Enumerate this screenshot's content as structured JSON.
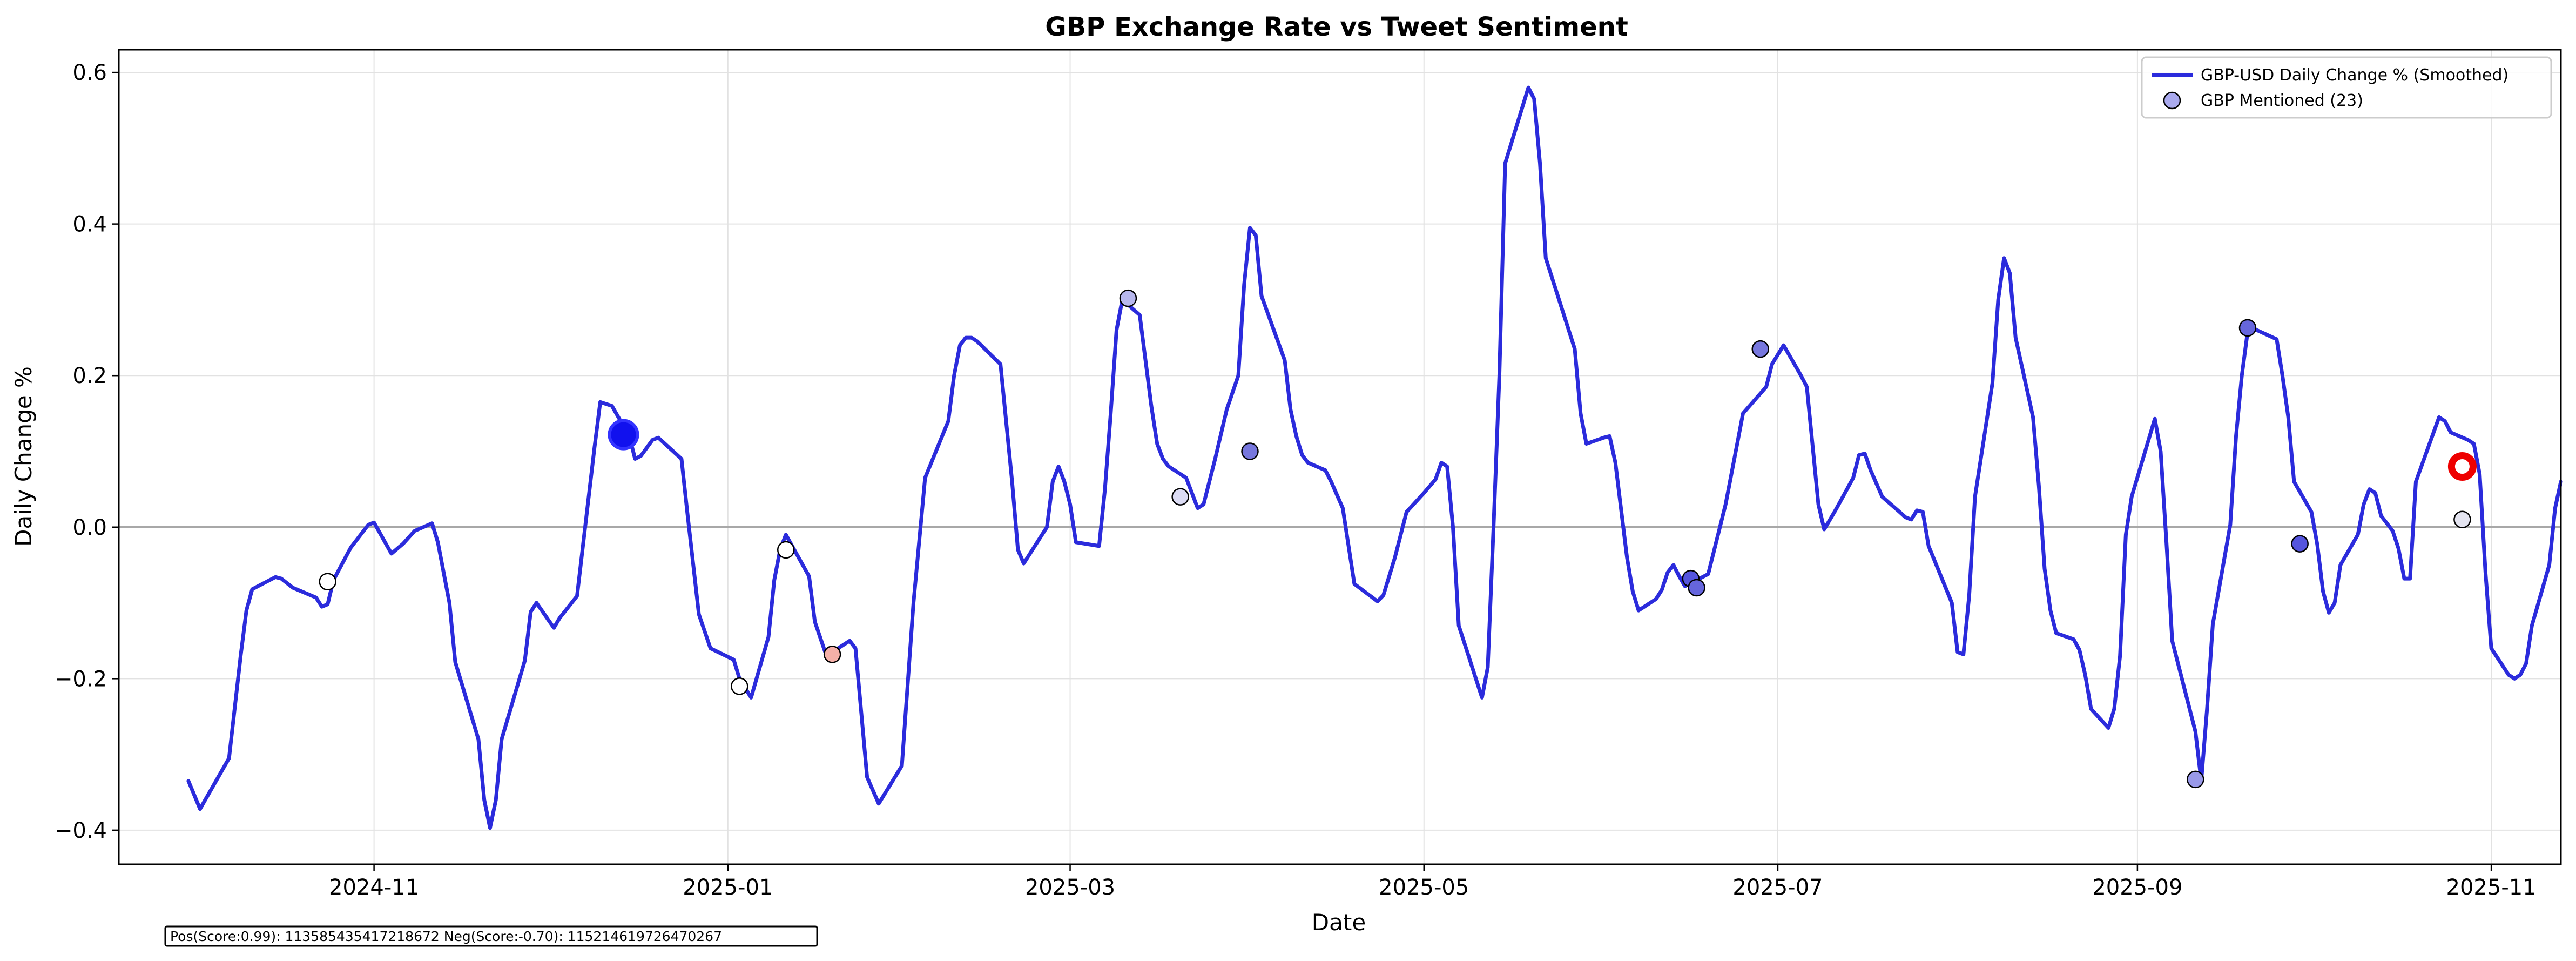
{
  "chart_data": {
    "type": "line",
    "title": "GBP Exchange Rate vs Tweet Sentiment",
    "xlabel": "Date",
    "ylabel": "Daily Change %",
    "xlim": [
      "2024-09-18",
      "2025-11-13"
    ],
    "ylim": [
      -0.445,
      0.63
    ],
    "grid": true,
    "zero_line": true,
    "legend_position": "top-right",
    "x_ticks": [
      "2024-11",
      "2025-01",
      "2025-03",
      "2025-05",
      "2025-07",
      "2025-09",
      "2025-11"
    ],
    "y_ticks": [
      -0.4,
      -0.2,
      0.0,
      0.2,
      0.4,
      0.6
    ],
    "series": [
      {
        "name": "GBP-USD Daily Change % (Smoothed)",
        "color": "#2b2bdc",
        "points": [
          [
            "2024-09-30",
            -0.335
          ],
          [
            "2024-10-02",
            -0.372
          ],
          [
            "2024-10-07",
            -0.305
          ],
          [
            "2024-10-09",
            -0.17
          ],
          [
            "2024-10-10",
            -0.11
          ],
          [
            "2024-10-11",
            -0.082
          ],
          [
            "2024-10-15",
            -0.066
          ],
          [
            "2024-10-16",
            -0.068
          ],
          [
            "2024-10-18",
            -0.08
          ],
          [
            "2024-10-22",
            -0.093
          ],
          [
            "2024-10-23",
            -0.105
          ],
          [
            "2024-10-24",
            -0.102
          ],
          [
            "2024-10-25",
            -0.07
          ],
          [
            "2024-10-28",
            -0.027
          ],
          [
            "2024-10-31",
            0.003
          ],
          [
            "2024-11-01",
            0.006
          ],
          [
            "2024-11-04",
            -0.035
          ],
          [
            "2024-11-06",
            -0.022
          ],
          [
            "2024-11-08",
            -0.005
          ],
          [
            "2024-11-11",
            0.005
          ],
          [
            "2024-11-12",
            -0.02
          ],
          [
            "2024-11-14",
            -0.1
          ],
          [
            "2024-11-15",
            -0.178
          ],
          [
            "2024-11-19",
            -0.28
          ],
          [
            "2024-11-20",
            -0.36
          ],
          [
            "2024-11-21",
            -0.397
          ],
          [
            "2024-11-22",
            -0.36
          ],
          [
            "2024-11-23",
            -0.28
          ],
          [
            "2024-11-27",
            -0.176
          ],
          [
            "2024-11-28",
            -0.112
          ],
          [
            "2024-11-29",
            -0.1
          ],
          [
            "2024-12-02",
            -0.133
          ],
          [
            "2024-12-03",
            -0.12
          ],
          [
            "2024-12-06",
            -0.091
          ],
          [
            "2024-12-09",
            0.105
          ],
          [
            "2024-12-10",
            0.165
          ],
          [
            "2024-12-12",
            0.16
          ],
          [
            "2024-12-15",
            0.12
          ],
          [
            "2024-12-16",
            0.09
          ],
          [
            "2024-12-17",
            0.094
          ],
          [
            "2024-12-19",
            0.115
          ],
          [
            "2024-12-20",
            0.118
          ],
          [
            "2024-12-24",
            0.09
          ],
          [
            "2024-12-25",
            0.02
          ],
          [
            "2024-12-27",
            -0.115
          ],
          [
            "2024-12-29",
            -0.16
          ],
          [
            "2025-01-02",
            -0.175
          ],
          [
            "2025-01-03",
            -0.2
          ],
          [
            "2025-01-05",
            -0.225
          ],
          [
            "2025-01-08",
            -0.145
          ],
          [
            "2025-01-09",
            -0.07
          ],
          [
            "2025-01-10",
            -0.03
          ],
          [
            "2025-01-11",
            -0.01
          ],
          [
            "2025-01-15",
            -0.065
          ],
          [
            "2025-01-16",
            -0.125
          ],
          [
            "2025-01-18",
            -0.17
          ],
          [
            "2025-01-20",
            -0.16
          ],
          [
            "2025-01-22",
            -0.15
          ],
          [
            "2025-01-23",
            -0.16
          ],
          [
            "2025-01-25",
            -0.33
          ],
          [
            "2025-01-27",
            -0.365
          ],
          [
            "2025-01-31",
            -0.315
          ],
          [
            "2025-02-02",
            -0.1
          ],
          [
            "2025-02-04",
            0.065
          ],
          [
            "2025-02-08",
            0.14
          ],
          [
            "2025-02-09",
            0.2
          ],
          [
            "2025-02-10",
            0.24
          ],
          [
            "2025-02-11",
            0.25
          ],
          [
            "2025-02-12",
            0.25
          ],
          [
            "2025-02-13",
            0.245
          ],
          [
            "2025-02-17",
            0.215
          ],
          [
            "2025-02-19",
            0.06
          ],
          [
            "2025-02-20",
            -0.03
          ],
          [
            "2025-02-21",
            -0.048
          ],
          [
            "2025-02-25",
            0.0
          ],
          [
            "2025-02-26",
            0.06
          ],
          [
            "2025-02-27",
            0.08
          ],
          [
            "2025-02-28",
            0.06
          ],
          [
            "2025-03-01",
            0.03
          ],
          [
            "2025-03-02",
            -0.02
          ],
          [
            "2025-03-06",
            -0.025
          ],
          [
            "2025-03-07",
            0.05
          ],
          [
            "2025-03-08",
            0.15
          ],
          [
            "2025-03-09",
            0.26
          ],
          [
            "2025-03-10",
            0.3
          ],
          [
            "2025-03-13",
            0.28
          ],
          [
            "2025-03-15",
            0.16
          ],
          [
            "2025-03-16",
            0.11
          ],
          [
            "2025-03-17",
            0.09
          ],
          [
            "2025-03-18",
            0.08
          ],
          [
            "2025-03-21",
            0.065
          ],
          [
            "2025-03-23",
            0.025
          ],
          [
            "2025-03-24",
            0.03
          ],
          [
            "2025-03-26",
            0.09
          ],
          [
            "2025-03-28",
            0.155
          ],
          [
            "2025-03-30",
            0.2
          ],
          [
            "2025-03-31",
            0.32
          ],
          [
            "2025-04-01",
            0.395
          ],
          [
            "2025-04-02",
            0.385
          ],
          [
            "2025-04-03",
            0.305
          ],
          [
            "2025-04-07",
            0.22
          ],
          [
            "2025-04-08",
            0.155
          ],
          [
            "2025-04-09",
            0.12
          ],
          [
            "2025-04-10",
            0.095
          ],
          [
            "2025-04-11",
            0.085
          ],
          [
            "2025-04-14",
            0.075
          ],
          [
            "2025-04-15",
            0.06
          ],
          [
            "2025-04-17",
            0.025
          ],
          [
            "2025-04-19",
            -0.075
          ],
          [
            "2025-04-23",
            -0.098
          ],
          [
            "2025-04-24",
            -0.09
          ],
          [
            "2025-04-26",
            -0.04
          ],
          [
            "2025-04-28",
            0.02
          ],
          [
            "2025-05-01",
            0.045
          ],
          [
            "2025-05-03",
            0.063
          ],
          [
            "2025-05-04",
            0.085
          ],
          [
            "2025-05-05",
            0.08
          ],
          [
            "2025-05-06",
            0.0
          ],
          [
            "2025-05-07",
            -0.13
          ],
          [
            "2025-05-11",
            -0.225
          ],
          [
            "2025-05-12",
            -0.185
          ],
          [
            "2025-05-13",
            0.0
          ],
          [
            "2025-05-14",
            0.2
          ],
          [
            "2025-05-15",
            0.48
          ],
          [
            "2025-05-19",
            0.58
          ],
          [
            "2025-05-20",
            0.565
          ],
          [
            "2025-05-21",
            0.48
          ],
          [
            "2025-05-22",
            0.355
          ],
          [
            "2025-05-27",
            0.235
          ],
          [
            "2025-05-28",
            0.15
          ],
          [
            "2025-05-29",
            0.11
          ],
          [
            "2025-06-01",
            0.118
          ],
          [
            "2025-06-02",
            0.12
          ],
          [
            "2025-06-03",
            0.085
          ],
          [
            "2025-06-05",
            -0.04
          ],
          [
            "2025-06-06",
            -0.085
          ],
          [
            "2025-06-07",
            -0.11
          ],
          [
            "2025-06-10",
            -0.095
          ],
          [
            "2025-06-11",
            -0.083
          ],
          [
            "2025-06-12",
            -0.06
          ],
          [
            "2025-06-13",
            -0.05
          ],
          [
            "2025-06-14",
            -0.065
          ],
          [
            "2025-06-15",
            -0.078
          ],
          [
            "2025-06-19",
            -0.062
          ],
          [
            "2025-06-22",
            0.03
          ],
          [
            "2025-06-24",
            0.11
          ],
          [
            "2025-06-25",
            0.15
          ],
          [
            "2025-06-29",
            0.185
          ],
          [
            "2025-06-30",
            0.215
          ],
          [
            "2025-07-02",
            0.24
          ],
          [
            "2025-07-05",
            0.2
          ],
          [
            "2025-07-06",
            0.185
          ],
          [
            "2025-07-08",
            0.03
          ],
          [
            "2025-07-09",
            -0.003
          ],
          [
            "2025-07-11",
            0.023
          ],
          [
            "2025-07-14",
            0.065
          ],
          [
            "2025-07-15",
            0.095
          ],
          [
            "2025-07-16",
            0.097
          ],
          [
            "2025-07-17",
            0.075
          ],
          [
            "2025-07-19",
            0.04
          ],
          [
            "2025-07-22",
            0.02
          ],
          [
            "2025-07-23",
            0.013
          ],
          [
            "2025-07-24",
            0.01
          ],
          [
            "2025-07-25",
            0.022
          ],
          [
            "2025-07-26",
            0.02
          ],
          [
            "2025-07-27",
            -0.025
          ],
          [
            "2025-07-31",
            -0.1
          ],
          [
            "2025-08-01",
            -0.165
          ],
          [
            "2025-08-02",
            -0.168
          ],
          [
            "2025-08-03",
            -0.09
          ],
          [
            "2025-08-04",
            0.04
          ],
          [
            "2025-08-07",
            0.19
          ],
          [
            "2025-08-08",
            0.3
          ],
          [
            "2025-08-09",
            0.355
          ],
          [
            "2025-08-10",
            0.335
          ],
          [
            "2025-08-11",
            0.25
          ],
          [
            "2025-08-14",
            0.145
          ],
          [
            "2025-08-15",
            0.055
          ],
          [
            "2025-08-16",
            -0.055
          ],
          [
            "2025-08-17",
            -0.11
          ],
          [
            "2025-08-18",
            -0.14
          ],
          [
            "2025-08-21",
            -0.148
          ],
          [
            "2025-08-22",
            -0.162
          ],
          [
            "2025-08-23",
            -0.195
          ],
          [
            "2025-08-24",
            -0.24
          ],
          [
            "2025-08-27",
            -0.265
          ],
          [
            "2025-08-28",
            -0.24
          ],
          [
            "2025-08-29",
            -0.17
          ],
          [
            "2025-08-30",
            -0.01
          ],
          [
            "2025-08-31",
            0.04
          ],
          [
            "2025-09-04",
            0.143
          ],
          [
            "2025-09-05",
            0.1
          ],
          [
            "2025-09-06",
            -0.02
          ],
          [
            "2025-09-07",
            -0.15
          ],
          [
            "2025-09-11",
            -0.27
          ],
          [
            "2025-09-12",
            -0.335
          ],
          [
            "2025-09-13",
            -0.24
          ],
          [
            "2025-09-14",
            -0.128
          ],
          [
            "2025-09-17",
            0.003
          ],
          [
            "2025-09-18",
            0.12
          ],
          [
            "2025-09-19",
            0.2
          ],
          [
            "2025-09-20",
            0.258
          ],
          [
            "2025-09-21",
            0.262
          ],
          [
            "2025-09-25",
            0.248
          ],
          [
            "2025-09-26",
            0.2
          ],
          [
            "2025-09-27",
            0.145
          ],
          [
            "2025-09-28",
            0.06
          ],
          [
            "2025-10-01",
            0.02
          ],
          [
            "2025-10-02",
            -0.023
          ],
          [
            "2025-10-03",
            -0.085
          ],
          [
            "2025-10-04",
            -0.113
          ],
          [
            "2025-10-05",
            -0.1
          ],
          [
            "2025-10-06",
            -0.05
          ],
          [
            "2025-10-09",
            -0.01
          ],
          [
            "2025-10-10",
            0.03
          ],
          [
            "2025-10-11",
            0.05
          ],
          [
            "2025-10-12",
            0.045
          ],
          [
            "2025-10-13",
            0.015
          ],
          [
            "2025-10-15",
            -0.005
          ],
          [
            "2025-10-16",
            -0.028
          ],
          [
            "2025-10-17",
            -0.068
          ],
          [
            "2025-10-18",
            -0.068
          ],
          [
            "2025-10-19",
            0.06
          ],
          [
            "2025-10-23",
            0.145
          ],
          [
            "2025-10-24",
            0.14
          ],
          [
            "2025-10-25",
            0.125
          ],
          [
            "2025-10-28",
            0.115
          ],
          [
            "2025-10-29",
            0.11
          ],
          [
            "2025-10-30",
            0.07
          ],
          [
            "2025-10-31",
            -0.06
          ],
          [
            "2025-11-01",
            -0.16
          ],
          [
            "2025-11-04",
            -0.195
          ],
          [
            "2025-11-05",
            -0.2
          ],
          [
            "2025-11-06",
            -0.195
          ],
          [
            "2025-11-07",
            -0.18
          ],
          [
            "2025-11-08",
            -0.13
          ],
          [
            "2025-11-11",
            -0.05
          ],
          [
            "2025-11-12",
            0.025
          ],
          [
            "2025-11-13",
            0.06
          ]
        ]
      },
      {
        "name": "GBP Mentioned (23)",
        "type": "scatter",
        "legend_color": "#aaaaee",
        "points": [
          {
            "x": "2024-10-24",
            "y": -0.072,
            "color": "#ffffff"
          },
          {
            "x": "2024-12-14",
            "y": 0.122,
            "color": "#1111ee",
            "big": true
          },
          {
            "x": "2025-01-03",
            "y": -0.21,
            "color": "#ffffff"
          },
          {
            "x": "2025-01-11",
            "y": -0.03,
            "color": "#ffffff"
          },
          {
            "x": "2025-01-19",
            "y": -0.168,
            "color": "#f5b0a8"
          },
          {
            "x": "2025-03-11",
            "y": 0.302,
            "color": "#b8b8ee"
          },
          {
            "x": "2025-03-20",
            "y": 0.04,
            "color": "#dcdcf4"
          },
          {
            "x": "2025-04-01",
            "y": 0.1,
            "color": "#7777dd"
          },
          {
            "x": "2025-06-16",
            "y": -0.068,
            "color": "#5555dd"
          },
          {
            "x": "2025-06-17",
            "y": -0.08,
            "color": "#6666dd"
          },
          {
            "x": "2025-06-28",
            "y": 0.235,
            "color": "#7777dd"
          },
          {
            "x": "2025-09-11",
            "y": -0.333,
            "color": "#9999e8"
          },
          {
            "x": "2025-09-20",
            "y": 0.263,
            "color": "#6666dd"
          },
          {
            "x": "2025-09-29",
            "y": -0.022,
            "color": "#5555dd"
          },
          {
            "x": "2025-10-27",
            "y": 0.08,
            "color": "#ee0000",
            "ring": true
          },
          {
            "x": "2025-10-27",
            "y": 0.01,
            "color": "#e4e4f0"
          }
        ]
      }
    ],
    "footer_text": "Pos(Score:0.99): 1135854354172186‌72  Neg(Score:-0.70): 1152146197264702‌67"
  }
}
